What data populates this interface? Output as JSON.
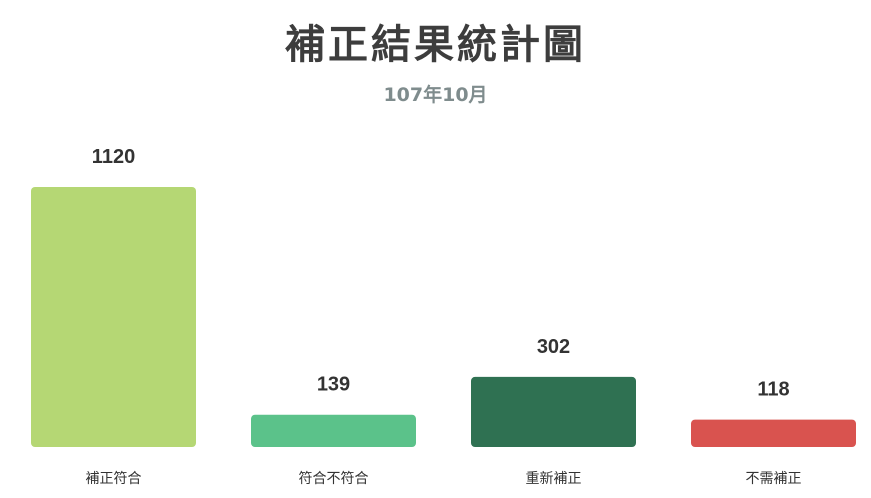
{
  "chart_data": {
    "type": "bar",
    "title": "補正結果統計圖",
    "subtitle": "107年10月",
    "xlabel": "",
    "ylabel": "",
    "categories": [
      "補正符合",
      "符合不符合",
      "重新補正",
      "不需補正"
    ],
    "values": [
      1120,
      139,
      302,
      118
    ],
    "colors": [
      "#b5d774",
      "#5bc28a",
      "#2f7152",
      "#d9534f"
    ],
    "ylim": [
      0,
      1120
    ],
    "grid": false,
    "legend": "none"
  }
}
